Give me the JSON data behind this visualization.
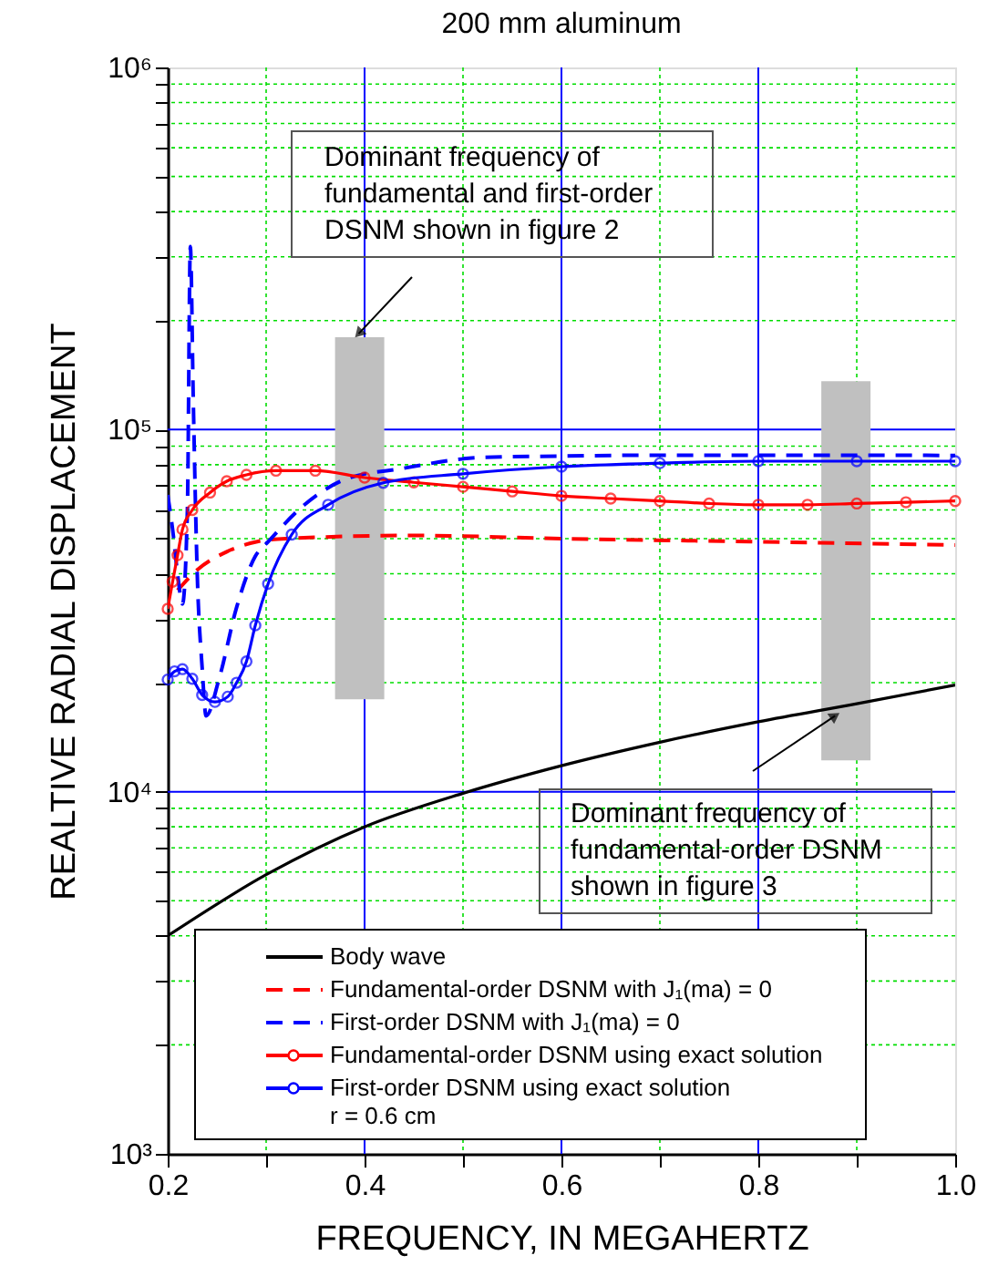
{
  "chart_data": {
    "type": "line",
    "title": "200 mm aluminum",
    "xlabel": "FREQUENCY, IN MEGAHERTZ",
    "ylabel": "REALTIVE RADIAL DISPLACEMENT",
    "log": "y",
    "grid": true,
    "legend": "bottom left",
    "xlim": [
      0.2,
      1.0
    ],
    "ylim": [
      1000,
      1000000
    ],
    "xticks": [
      0.2,
      {
        "value": 0.3,
        "label": null
      },
      0.4,
      {
        "value": 0.5,
        "label": null
      },
      0.6,
      {
        "value": 0.7,
        "label": null
      },
      0.8,
      {
        "value": 0.9,
        "label": null
      },
      {
        "value": 1.0,
        "label": "1.0"
      }
    ],
    "yticks": [
      {
        "value": 1000,
        "label": "10³"
      },
      {
        "value": 2000,
        "label": null
      },
      {
        "value": 3000,
        "label": null
      },
      {
        "value": 4000,
        "label": null
      },
      {
        "value": 5000,
        "label": null
      },
      {
        "value": 6000,
        "label": null
      },
      {
        "value": 7000,
        "label": null
      },
      {
        "value": 8000,
        "label": null
      },
      {
        "value": 9000,
        "label": null
      },
      {
        "value": 10000,
        "label": "10⁴"
      },
      {
        "value": 20000,
        "label": null
      },
      {
        "value": 30000,
        "label": null
      },
      {
        "value": 40000,
        "label": null
      },
      {
        "value": 50000,
        "label": null
      },
      {
        "value": 60000,
        "label": null
      },
      {
        "value": 70000,
        "label": null
      },
      {
        "value": 80000,
        "label": null
      },
      {
        "value": 90000,
        "label": null
      },
      {
        "value": 100000,
        "label": "10⁵"
      },
      {
        "value": 200000,
        "label": null
      },
      {
        "value": 300000,
        "label": null
      },
      {
        "value": 400000,
        "label": null
      },
      {
        "value": 500000,
        "label": null
      },
      {
        "value": 600000,
        "label": null
      },
      {
        "value": 700000,
        "label": null
      },
      {
        "value": 800000,
        "label": null
      },
      {
        "value": 900000,
        "label": null
      },
      {
        "value": 1000000,
        "label": "10⁶"
      }
    ],
    "series": [
      {
        "type": "bar",
        "color": "#c0c0c0",
        "x": [
          0.395,
          0.889
        ],
        "base": [
          18000,
          12200
        ],
        "values": [
          162000,
          123800
        ]
      },
      {
        "name": "Body wave",
        "color": "#000000",
        "line_style": "solid",
        "marker": "none",
        "x": [
          0.2,
          0.3,
          0.4,
          0.5,
          0.6,
          0.7,
          0.8,
          0.9,
          1.0
        ],
        "values": [
          4000,
          5900,
          8000,
          9900,
          11800,
          13700,
          15600,
          17500,
          19700
        ]
      },
      {
        "name": "Fundamental-order DSNM  with J₁(ma) = 0",
        "color": "#ff0000",
        "line_style": "dashed",
        "marker": "none",
        "x": [
          0.21,
          0.23,
          0.26,
          0.29,
          0.32,
          0.45,
          0.6,
          0.8,
          1.0
        ],
        "values": [
          36000,
          41000,
          46000,
          49000,
          50000,
          51000,
          50000,
          49000,
          48000
        ]
      },
      {
        "name": "First-order DSNM with J₁(ma) = 0",
        "color": "#0000ff",
        "line_style": "dashed",
        "marker": "none",
        "x": [
          0.2,
          0.205,
          0.21,
          0.215,
          0.22,
          0.223,
          0.226,
          0.23,
          0.235,
          0.239,
          0.252,
          0.27,
          0.289,
          0.302,
          0.339,
          0.381,
          0.437,
          0.517,
          0.6,
          0.7,
          0.8,
          0.9,
          1.0
        ],
        "values": [
          66000,
          53000,
          40000,
          33000,
          60000,
          320000,
          120000,
          40000,
          22000,
          16200,
          20400,
          32300,
          44700,
          49000,
          62000,
          73000,
          78000,
          83700,
          84500,
          85000,
          85000,
          85000,
          84800
        ]
      },
      {
        "name": "Fundamental-order DSNM using exact solution",
        "color": "#ff0000",
        "line_style": "solid",
        "marker": "circle",
        "x": [
          0.2,
          0.205,
          0.21,
          0.215,
          0.225,
          0.243,
          0.26,
          0.28,
          0.31,
          0.35,
          0.4,
          0.45,
          0.5,
          0.55,
          0.6,
          0.65,
          0.7,
          0.75,
          0.8,
          0.85,
          0.9,
          0.95,
          1.0
        ],
        "values": [
          32000,
          38000,
          45000,
          53000,
          60000,
          67000,
          72000,
          75000,
          77000,
          77000,
          73700,
          71500,
          69500,
          67500,
          65600,
          64500,
          63500,
          62500,
          62000,
          62000,
          62500,
          63000,
          63500
        ]
      },
      {
        "name": "First-order DSNM using exact solution",
        "color": "#0000ff",
        "line_style": "solid",
        "marker": "circle",
        "x": [
          0.2,
          0.207,
          0.215,
          0.225,
          0.235,
          0.248,
          0.261,
          0.27,
          0.28,
          0.289,
          0.302,
          0.326,
          0.363,
          0.419,
          0.5,
          0.6,
          0.7,
          0.8,
          0.9,
          1.0
        ],
        "values": [
          20400,
          21500,
          21800,
          20500,
          18500,
          17700,
          18300,
          20000,
          22900,
          28800,
          37500,
          51300,
          62000,
          71300,
          75500,
          79000,
          80800,
          81800,
          81800,
          81800
        ]
      }
    ],
    "annotations": [
      {
        "text": "Dominant frequency of\nfundamental and first-order\nDSNM shown in figure 2",
        "x": 0.394,
        "y": 184000
      },
      {
        "text": "Dominant frequency of\nfundamental-order DSNM\nshown in figure 3",
        "x": 0.878,
        "y": 16200
      },
      "r = 0.6 cm"
    ]
  }
}
